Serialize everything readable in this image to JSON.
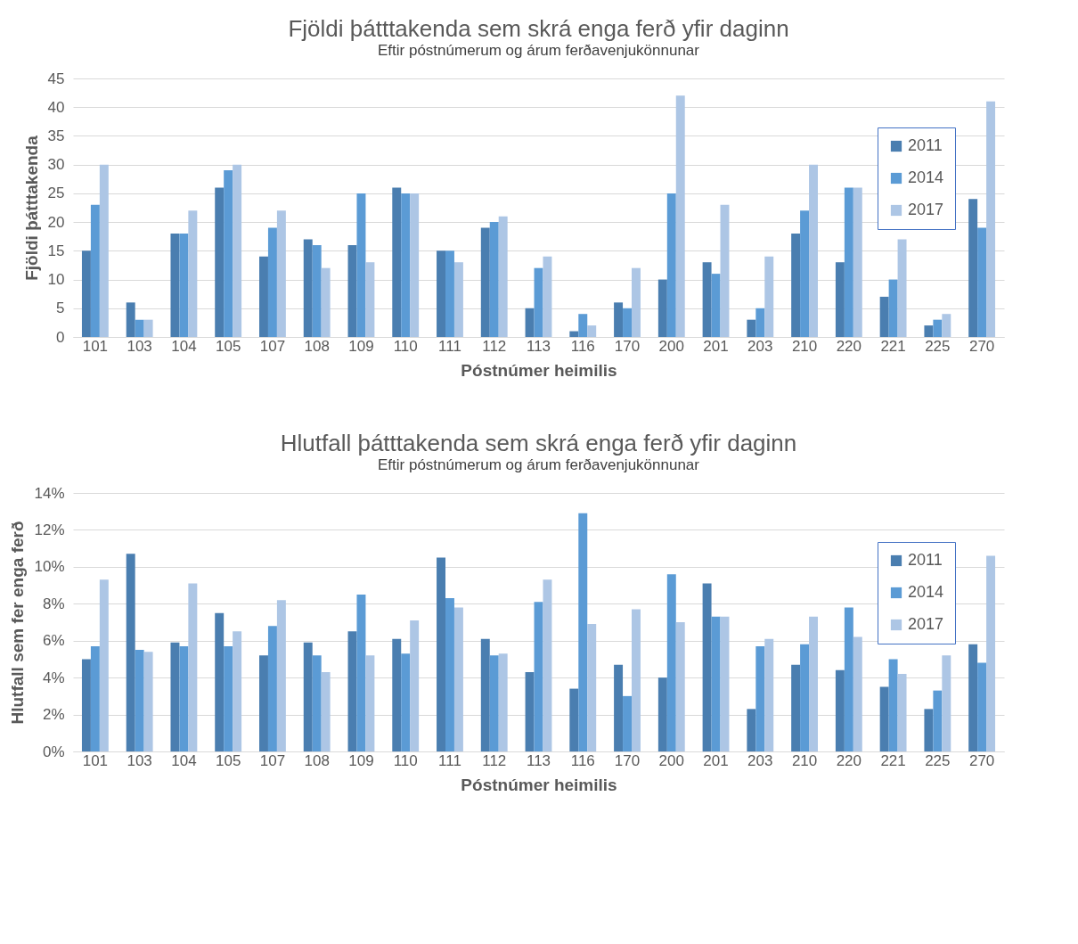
{
  "chart_data": [
    {
      "type": "bar",
      "title": "Fjöldi þátttakenda sem skrá enga ferð yfir daginn",
      "subtitle": "Eftir póstnúmerum og árum ferðavenjukönnunar",
      "xlabel": "Póstnúmer heimilis",
      "ylabel": "Fjöldi þátttakenda",
      "categories": [
        "101",
        "103",
        "104",
        "105",
        "107",
        "108",
        "109",
        "110",
        "111",
        "112",
        "113",
        "116",
        "170",
        "200",
        "201",
        "203",
        "210",
        "220",
        "221",
        "225",
        "270"
      ],
      "series": [
        {
          "name": "2011",
          "color": "#4a7eb0",
          "values": [
            15,
            6,
            18,
            26,
            14,
            17,
            16,
            26,
            15,
            19,
            5,
            1,
            6,
            10,
            13,
            3,
            18,
            13,
            7,
            2,
            24
          ]
        },
        {
          "name": "2014",
          "color": "#5b9bd5",
          "values": [
            23,
            3,
            18,
            29,
            19,
            16,
            25,
            25,
            15,
            20,
            12,
            4,
            5,
            25,
            11,
            5,
            22,
            26,
            10,
            3,
            19
          ]
        },
        {
          "name": "2017",
          "color": "#adc6e5",
          "values": [
            30,
            3,
            22,
            30,
            22,
            12,
            13,
            25,
            13,
            21,
            14,
            2,
            12,
            42,
            23,
            14,
            30,
            26,
            17,
            4,
            41
          ]
        }
      ],
      "ylim": [
        0,
        45
      ],
      "yticks": [
        0,
        5,
        10,
        15,
        20,
        25,
        30,
        35,
        40,
        45
      ],
      "grid": "y",
      "legend": "top right"
    },
    {
      "type": "bar",
      "title": "Hlutfall þátttakenda sem skrá enga ferð yfir daginn",
      "subtitle": "Eftir póstnúmerum og árum ferðavenjukönnunar",
      "xlabel": "Póstnúmer heimilis",
      "ylabel": "Hlutfall sem fer enga ferð",
      "categories": [
        "101",
        "103",
        "104",
        "105",
        "107",
        "108",
        "109",
        "110",
        "111",
        "112",
        "113",
        "116",
        "170",
        "200",
        "201",
        "203",
        "210",
        "220",
        "221",
        "225",
        "270"
      ],
      "series": [
        {
          "name": "2011",
          "color": "#4a7eb0",
          "values": [
            5.0,
            10.7,
            5.9,
            7.5,
            5.2,
            5.9,
            6.5,
            6.1,
            10.5,
            6.1,
            4.3,
            3.4,
            4.7,
            4.0,
            9.1,
            2.3,
            4.7,
            4.4,
            3.5,
            2.3,
            5.8
          ]
        },
        {
          "name": "2014",
          "color": "#5b9bd5",
          "values": [
            5.7,
            5.5,
            5.7,
            5.7,
            6.8,
            5.2,
            8.5,
            5.3,
            8.3,
            5.2,
            8.1,
            12.9,
            3.0,
            9.6,
            7.3,
            5.7,
            5.8,
            7.8,
            5.0,
            3.3,
            4.8
          ]
        },
        {
          "name": "2017",
          "color": "#adc6e5",
          "values": [
            9.3,
            5.4,
            9.1,
            6.5,
            8.2,
            4.3,
            5.2,
            7.1,
            7.8,
            5.3,
            9.3,
            6.9,
            7.7,
            7.0,
            7.3,
            6.1,
            7.3,
            6.2,
            4.2,
            5.2,
            10.6
          ]
        }
      ],
      "ylim": [
        0,
        14
      ],
      "yticks": [
        {
          "value": 0,
          "label": "0%"
        },
        {
          "value": 2,
          "label": "2%"
        },
        {
          "value": 4,
          "label": "4%"
        },
        {
          "value": 6,
          "label": "6%"
        },
        {
          "value": 8,
          "label": "8%"
        },
        {
          "value": 10,
          "label": "10%"
        },
        {
          "value": 12,
          "label": "12%"
        },
        {
          "value": 14,
          "label": "14%"
        }
      ],
      "grid": "y",
      "legend": "top right"
    }
  ]
}
